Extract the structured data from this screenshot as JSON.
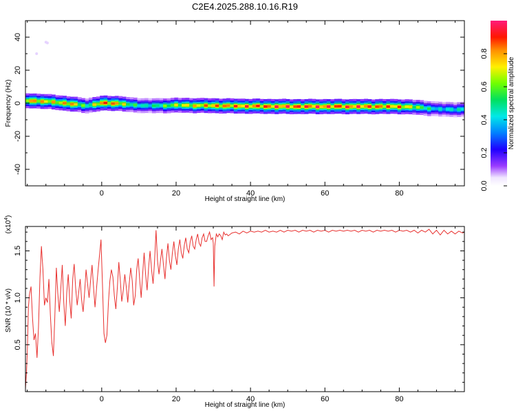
{
  "figure": {
    "title": "C2E4.2025.288.10.16.R19"
  },
  "chart_data": [
    {
      "type": "heatmap",
      "title": "C2E4.2025.288.10.16.R19",
      "xlabel": "Height of straight line (km)",
      "ylabel": "Frequency (Hz)",
      "xlim": [
        -20.5,
        97.5
      ],
      "ylim": [
        -50,
        50
      ],
      "xticks": [
        0,
        20,
        40,
        60,
        80
      ],
      "yticks": [
        -40,
        -20,
        0,
        20,
        40
      ],
      "colorbar": {
        "label": "Normalized spectral amplitude",
        "range": [
          0,
          1
        ],
        "ticks": [
          0.0,
          0.2,
          0.4,
          0.6,
          0.8
        ]
      },
      "description_points": {
        "x": [
          -19,
          -16,
          -12,
          -8,
          -4,
          0,
          4,
          8,
          12,
          16,
          20,
          30,
          40,
          50,
          60,
          70,
          80,
          85,
          90,
          95
        ],
        "peak_frequency": [
          1.5,
          1.2,
          0.5,
          -0.5,
          -1.5,
          0,
          0,
          -1,
          -1.5,
          -1.5,
          -1.2,
          -1.5,
          -1.8,
          -2,
          -2,
          -2,
          -2,
          -2.5,
          -3.5,
          -3.8
        ],
        "amplitude": [
          0.9,
          0.85,
          0.8,
          0.9,
          0.55,
          0.95,
          0.9,
          0.6,
          0.5,
          0.6,
          0.75,
          0.9,
          0.95,
          0.98,
          0.98,
          0.97,
          0.9,
          0.7,
          0.45,
          0.5
        ]
      }
    },
    {
      "type": "line",
      "xlabel": "Height of straight line (km)",
      "ylabel": "SNR (10 * v/v)",
      "y_multiplier": "(x10",
      "y_multiplier_exp": "4",
      "y_multiplier_close": ")",
      "xlim": [
        -20.5,
        97.5
      ],
      "ylim": [
        0,
        1.76
      ],
      "xticks": [
        0,
        20,
        40,
        60,
        80
      ],
      "yticks": [
        0.5,
        1.0,
        1.5
      ],
      "series": [
        {
          "values": [
            [
              -20.5,
              0.03
            ],
            [
              -20.2,
              0.22
            ],
            [
              -20.0,
              0.42
            ],
            [
              -19.7,
              0.9
            ],
            [
              -19.4,
              1.04
            ],
            [
              -19.0,
              1.12
            ],
            [
              -18.6,
              0.78
            ],
            [
              -18.2,
              0.55
            ],
            [
              -17.8,
              0.62
            ],
            [
              -17.4,
              0.36
            ],
            [
              -17.0,
              0.68
            ],
            [
              -16.6,
              1.22
            ],
            [
              -16.2,
              1.55
            ],
            [
              -15.8,
              1.3
            ],
            [
              -15.4,
              0.92
            ],
            [
              -15.0,
              1.0
            ],
            [
              -14.6,
              0.95
            ],
            [
              -14.2,
              1.2
            ],
            [
              -13.8,
              0.82
            ],
            [
              -13.4,
              0.52
            ],
            [
              -13.0,
              0.38
            ],
            [
              -12.6,
              0.8
            ],
            [
              -12.2,
              1.32
            ],
            [
              -11.8,
              1.05
            ],
            [
              -11.4,
              0.85
            ],
            [
              -11.0,
              1.1
            ],
            [
              -10.6,
              1.35
            ],
            [
              -10.2,
              0.95
            ],
            [
              -9.8,
              0.7
            ],
            [
              -9.4,
              1.05
            ],
            [
              -9.0,
              1.25
            ],
            [
              -8.6,
              0.98
            ],
            [
              -8.2,
              0.78
            ],
            [
              -7.8,
              1.2
            ],
            [
              -7.4,
              1.36
            ],
            [
              -7.0,
              1.1
            ],
            [
              -6.6,
              0.92
            ],
            [
              -6.2,
              1.05
            ],
            [
              -5.8,
              1.2
            ],
            [
              -5.4,
              0.98
            ],
            [
              -5.0,
              0.85
            ],
            [
              -4.6,
              1.06
            ],
            [
              -4.2,
              1.3
            ],
            [
              -3.8,
              1.15
            ],
            [
              -3.4,
              1.0
            ],
            [
              -3.0,
              1.18
            ],
            [
              -2.6,
              1.35
            ],
            [
              -2.2,
              1.12
            ],
            [
              -1.8,
              0.9
            ],
            [
              -1.4,
              1.1
            ],
            [
              -1.0,
              1.28
            ],
            [
              -0.6,
              1.45
            ],
            [
              -0.2,
              1.62
            ],
            [
              0.2,
              1.15
            ],
            [
              0.6,
              0.62
            ],
            [
              1.0,
              0.52
            ],
            [
              1.4,
              0.6
            ],
            [
              1.8,
              0.95
            ],
            [
              2.2,
              1.18
            ],
            [
              2.6,
              1.3
            ],
            [
              3.0,
              1.22
            ],
            [
              3.4,
              1.02
            ],
            [
              3.8,
              0.88
            ],
            [
              4.2,
              1.1
            ],
            [
              4.6,
              1.38
            ],
            [
              5.0,
              1.18
            ],
            [
              5.4,
              0.96
            ],
            [
              5.8,
              1.08
            ],
            [
              6.2,
              1.25
            ],
            [
              6.6,
              1.12
            ],
            [
              7.0,
              0.95
            ],
            [
              7.4,
              1.15
            ],
            [
              7.8,
              1.32
            ],
            [
              8.2,
              1.18
            ],
            [
              8.6,
              0.92
            ],
            [
              9.0,
              1.02
            ],
            [
              9.4,
              1.3
            ],
            [
              9.8,
              1.42
            ],
            [
              10.2,
              1.2
            ],
            [
              10.6,
              1.0
            ],
            [
              11.0,
              1.25
            ],
            [
              11.4,
              1.48
            ],
            [
              11.8,
              1.25
            ],
            [
              12.2,
              1.08
            ],
            [
              12.6,
              1.32
            ],
            [
              13.0,
              1.5
            ],
            [
              13.4,
              1.3
            ],
            [
              13.8,
              1.15
            ],
            [
              14.2,
              1.38
            ],
            [
              14.6,
              1.72
            ],
            [
              15.0,
              1.4
            ],
            [
              15.4,
              1.25
            ],
            [
              15.8,
              1.4
            ],
            [
              16.2,
              1.52
            ],
            [
              16.6,
              1.35
            ],
            [
              17.0,
              1.2
            ],
            [
              17.4,
              1.42
            ],
            [
              17.8,
              1.58
            ],
            [
              18.2,
              1.4
            ],
            [
              18.6,
              1.3
            ],
            [
              19.0,
              1.48
            ],
            [
              19.4,
              1.6
            ],
            [
              19.8,
              1.45
            ],
            [
              20.2,
              1.35
            ],
            [
              20.6,
              1.52
            ],
            [
              21.0,
              1.62
            ],
            [
              21.4,
              1.48
            ],
            [
              21.8,
              1.42
            ],
            [
              22.2,
              1.56
            ],
            [
              22.6,
              1.64
            ],
            [
              23.0,
              1.52
            ],
            [
              23.4,
              1.48
            ],
            [
              23.8,
              1.6
            ],
            [
              24.2,
              1.66
            ],
            [
              24.6,
              1.55
            ],
            [
              25.0,
              1.52
            ],
            [
              25.4,
              1.62
            ],
            [
              25.8,
              1.68
            ],
            [
              26.2,
              1.58
            ],
            [
              26.6,
              1.55
            ],
            [
              27.0,
              1.64
            ],
            [
              27.4,
              1.68
            ],
            [
              27.8,
              1.6
            ],
            [
              28.2,
              1.6
            ],
            [
              28.6,
              1.66
            ],
            [
              29.0,
              1.7
            ],
            [
              29.4,
              1.62
            ],
            [
              29.8,
              1.64
            ],
            [
              30.0,
              1.58
            ],
            [
              30.2,
              1.12
            ],
            [
              30.4,
              1.55
            ],
            [
              30.8,
              1.68
            ],
            [
              31.2,
              1.65
            ],
            [
              31.6,
              1.68
            ],
            [
              32.0,
              1.66
            ],
            [
              32.4,
              1.62
            ],
            [
              32.8,
              1.7
            ],
            [
              33.2,
              1.67
            ],
            [
              33.6,
              1.68
            ],
            [
              34.0,
              1.66
            ],
            [
              35.0,
              1.69
            ],
            [
              36.0,
              1.7
            ],
            [
              37.0,
              1.68
            ],
            [
              38.0,
              1.71
            ],
            [
              39.0,
              1.69
            ],
            [
              40.0,
              1.71
            ],
            [
              41.0,
              1.7
            ],
            [
              42.0,
              1.71
            ],
            [
              43.0,
              1.7
            ],
            [
              44.0,
              1.72
            ],
            [
              45.0,
              1.7
            ],
            [
              46.0,
              1.71
            ],
            [
              47.0,
              1.7
            ],
            [
              48.0,
              1.72
            ],
            [
              49.0,
              1.7
            ],
            [
              50.0,
              1.72
            ],
            [
              51.0,
              1.71
            ],
            [
              52.0,
              1.72
            ],
            [
              53.0,
              1.7
            ],
            [
              54.0,
              1.72
            ],
            [
              55.0,
              1.71
            ],
            [
              56.0,
              1.72
            ],
            [
              57.0,
              1.7
            ],
            [
              58.0,
              1.72
            ],
            [
              59.0,
              1.71
            ],
            [
              60.0,
              1.72
            ],
            [
              61.0,
              1.7
            ],
            [
              62.0,
              1.72
            ],
            [
              63.0,
              1.71
            ],
            [
              64.0,
              1.72
            ],
            [
              65.0,
              1.71
            ],
            [
              66.0,
              1.72
            ],
            [
              67.0,
              1.71
            ],
            [
              68.0,
              1.72
            ],
            [
              69.0,
              1.7
            ],
            [
              70.0,
              1.72
            ],
            [
              71.0,
              1.71
            ],
            [
              72.0,
              1.72
            ],
            [
              73.0,
              1.7
            ],
            [
              74.0,
              1.72
            ],
            [
              75.0,
              1.71
            ],
            [
              76.0,
              1.72
            ],
            [
              77.0,
              1.71
            ],
            [
              78.0,
              1.72
            ],
            [
              79.0,
              1.7
            ],
            [
              80.0,
              1.72
            ],
            [
              81.0,
              1.71
            ],
            [
              82.0,
              1.72
            ],
            [
              83.0,
              1.7
            ],
            [
              84.0,
              1.72
            ],
            [
              85.0,
              1.69
            ],
            [
              86.0,
              1.72
            ],
            [
              87.0,
              1.7
            ],
            [
              88.0,
              1.73
            ],
            [
              89.0,
              1.68
            ],
            [
              90.0,
              1.72
            ],
            [
              91.0,
              1.67
            ],
            [
              92.0,
              1.72
            ],
            [
              93.0,
              1.68
            ],
            [
              94.0,
              1.71
            ],
            [
              95.0,
              1.68
            ],
            [
              96.0,
              1.71
            ],
            [
              97.0,
              1.69
            ],
            [
              97.5,
              1.7
            ]
          ],
          "color": "#e8302e"
        }
      ]
    }
  ]
}
